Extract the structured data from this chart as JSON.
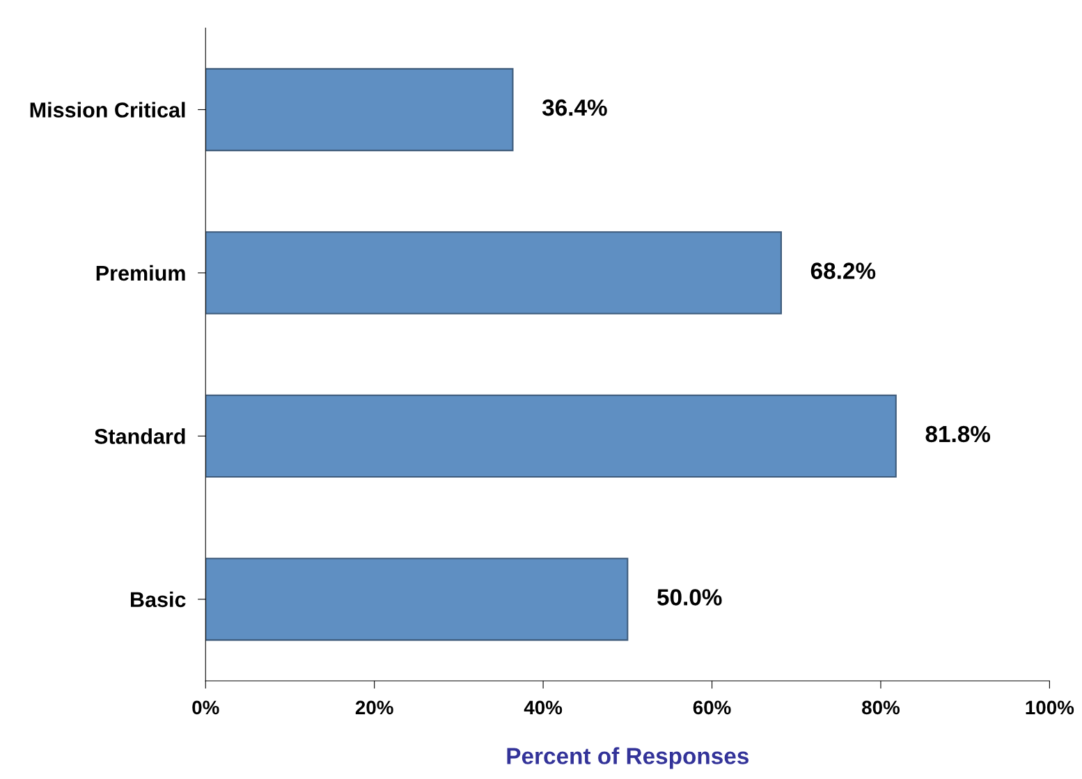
{
  "chart_data": {
    "type": "bar",
    "orientation": "horizontal",
    "categories": [
      "Mission Critical",
      "Premium",
      "Standard",
      "Basic"
    ],
    "values": [
      36.4,
      68.2,
      81.8,
      50.0
    ],
    "value_labels": [
      "36.4%",
      "68.2%",
      "81.8%",
      "50.0%"
    ],
    "color": "#5f8fc2",
    "xlabel": "Percent of Responses",
    "xlim": [
      0,
      100
    ],
    "xticks": [
      {
        "value": 0,
        "label": "0%"
      },
      {
        "value": 20,
        "label": "20%"
      },
      {
        "value": 40,
        "label": "40%"
      },
      {
        "value": 60,
        "label": "60%"
      },
      {
        "value": 80,
        "label": "80%"
      },
      {
        "value": 100,
        "label": "100%"
      }
    ],
    "grid": false,
    "legend": false
  }
}
